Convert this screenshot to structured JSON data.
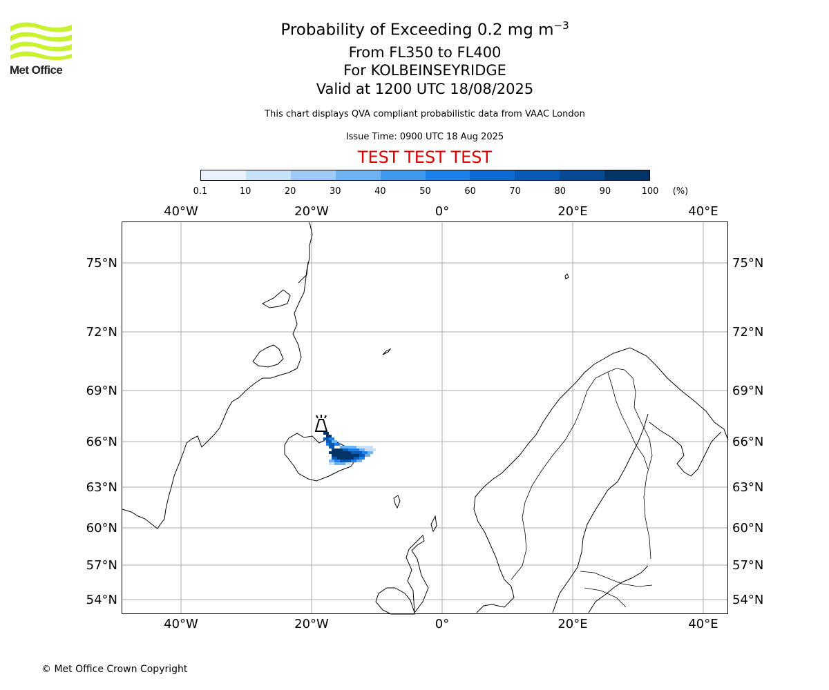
{
  "header": {
    "logo_text": "Met Office",
    "title": "Probability of Exceeding 0.2 mg m",
    "title_exponent": "−3",
    "line2": "From FL350 to FL400",
    "line3": "For KOLBEINSEYRIDGE",
    "line4": "Valid at 1200 UTC 18/08/2025",
    "note": "This chart displays QVA compliant probabilistic data from VAAC London",
    "issue_time": "Issue Time: 0900 UTC 18 Aug 2025",
    "test_banner": "TEST TEST TEST"
  },
  "colorbar": {
    "ticks": [
      "0.1",
      "10",
      "20",
      "30",
      "40",
      "50",
      "60",
      "70",
      "80",
      "90",
      "100"
    ],
    "unit": "(%)",
    "colors": [
      "#eaf3fd",
      "#c7e1f9",
      "#9ecbf6",
      "#6fb2f2",
      "#3d98ee",
      "#1a82ea",
      "#0c6cd3",
      "#075bb6",
      "#054a93",
      "#023468"
    ]
  },
  "map": {
    "lon_labels": [
      "40°W",
      "20°W",
      "0°",
      "20°E",
      "40°E"
    ],
    "lat_labels": [
      "75°N",
      "72°N",
      "69°N",
      "66°N",
      "63°N",
      "60°N",
      "57°N",
      "54°N"
    ],
    "source_marker": "volcano-triangle-icon",
    "plume_levels": [
      {
        "level": "10-20",
        "color": "#c7e1f9"
      },
      {
        "level": "30-40",
        "color": "#6fb2f2"
      },
      {
        "level": "50-60",
        "color": "#1a82ea"
      },
      {
        "level": "70-80",
        "color": "#075bb6"
      },
      {
        "level": "90-100",
        "color": "#023468"
      }
    ]
  },
  "footer": {
    "copyright": "© Met Office Crown Copyright"
  }
}
